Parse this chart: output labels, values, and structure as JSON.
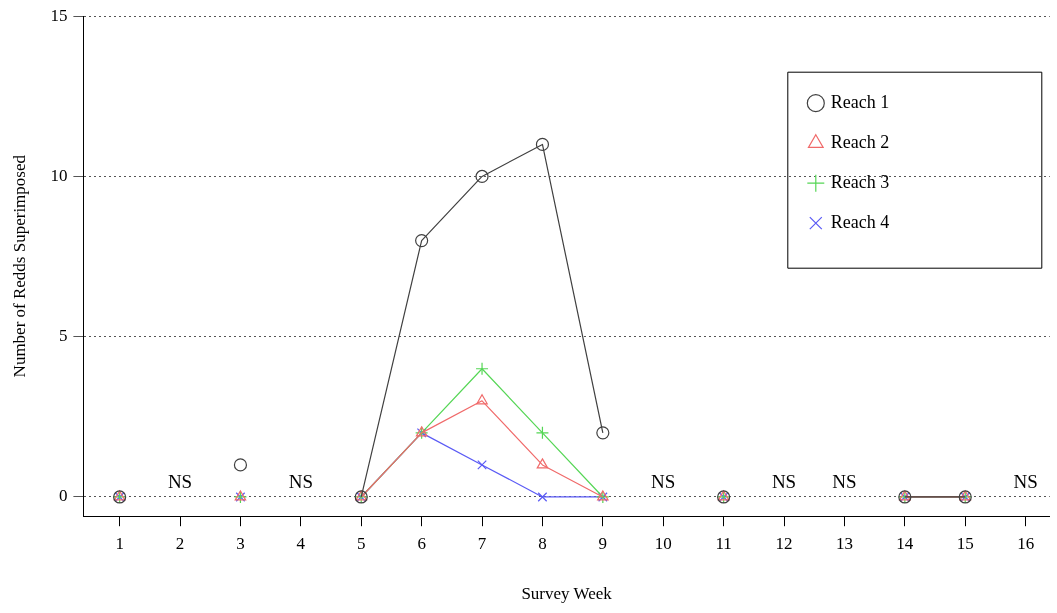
{
  "chart_data": {
    "type": "line",
    "xlabel": "Survey Week",
    "ylabel": "Number of Redds Superimposed",
    "x": [
      1,
      2,
      3,
      4,
      5,
      6,
      7,
      8,
      9,
      10,
      11,
      12,
      13,
      14,
      15
    ],
    "xlim": [
      0.4,
      16.4
    ],
    "xticks": [
      1,
      2,
      3,
      4,
      5,
      6,
      7,
      8,
      9,
      10,
      11,
      12,
      13,
      14,
      15,
      16
    ],
    "ylim": [
      -0.6,
      15
    ],
    "yticks": [
      0,
      5,
      10,
      15
    ],
    "grid": "y",
    "legend": "top right",
    "line_style": "solid",
    "series": [
      {
        "name": "Reach 1",
        "color": "#404040",
        "marker": "circle",
        "values": [
          0,
          null,
          1,
          null,
          0,
          8,
          10,
          11,
          2,
          null,
          0,
          null,
          null,
          0,
          0
        ]
      },
      {
        "name": "Reach 2",
        "color": "#f06a6a",
        "marker": "triangle",
        "values": [
          0,
          null,
          0,
          null,
          0,
          2,
          3,
          1,
          0,
          null,
          0,
          null,
          null,
          0,
          0
        ]
      },
      {
        "name": "Reach 3",
        "color": "#55d655",
        "marker": "cross",
        "values": [
          0,
          null,
          0,
          null,
          0,
          2,
          4,
          2,
          0,
          null,
          0,
          null,
          null,
          0,
          0
        ]
      },
      {
        "name": "Reach 4",
        "color": "#5a5af5",
        "marker": "x",
        "values": [
          0,
          null,
          0,
          null,
          0,
          2,
          1,
          0,
          0,
          null,
          0,
          null,
          null,
          0,
          0
        ]
      }
    ],
    "annotations": [
      "NS",
      "NS",
      "NS",
      "NS",
      "NS",
      "NS"
    ]
  }
}
